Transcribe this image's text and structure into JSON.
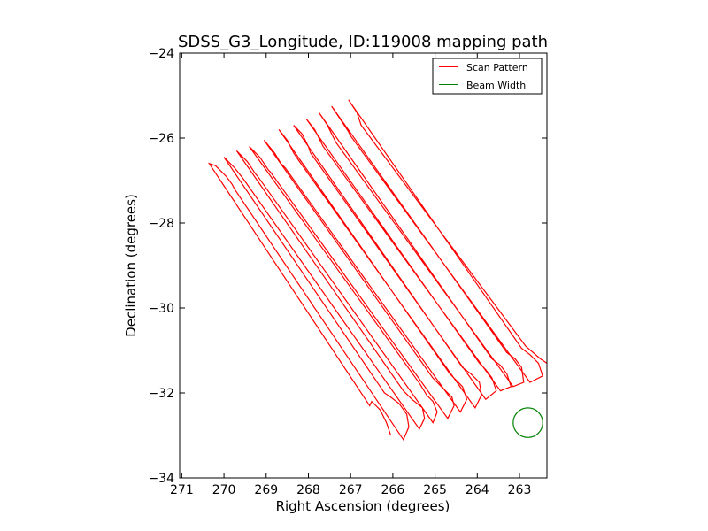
{
  "chart_data": {
    "type": "line",
    "title": "SDSS_G3_Longitude, ID:119008 mapping path",
    "xlabel": "Right Ascension (degrees)",
    "ylabel": "Declination (degrees)",
    "xlim": [
      271.05,
      262.35
    ],
    "ylim": [
      -34,
      -24
    ],
    "x_ticks": [
      271,
      270,
      269,
      268,
      267,
      266,
      265,
      264,
      263
    ],
    "x_tick_labels": [
      "271",
      "270",
      "269",
      "268",
      "267",
      "266",
      "265",
      "264",
      "263"
    ],
    "y_ticks": [
      -24,
      -26,
      -28,
      -30,
      -32,
      -34
    ],
    "y_tick_labels": [
      "−24",
      "−26",
      "−28",
      "−30",
      "−32",
      "−34"
    ],
    "grid": false,
    "legend_position": "upper right",
    "series": [
      {
        "name": "Scan Pattern",
        "color": "#ff0000",
        "x": [
          266.05,
          266.15,
          266.3,
          266.5,
          266.55,
          270.35,
          270.2,
          269.95,
          269.8,
          269.75,
          265.75,
          265.62,
          265.67,
          265.85,
          266.05,
          266.2,
          270.0,
          269.75,
          269.55,
          269.55,
          265.37,
          265.25,
          265.3,
          265.55,
          265.75,
          269.7,
          269.45,
          269.25,
          269.2,
          265.05,
          264.95,
          265.05,
          265.2,
          265.35,
          269.4,
          269.15,
          268.95,
          268.9,
          264.7,
          264.55,
          264.6,
          264.85,
          265.05,
          269.05,
          268.8,
          268.65,
          268.55,
          264.4,
          264.25,
          264.35,
          264.5,
          264.65,
          268.7,
          268.5,
          268.35,
          268.25,
          264.05,
          263.9,
          263.95,
          264.15,
          264.35,
          268.35,
          268.15,
          268.0,
          267.95,
          263.8,
          263.55,
          263.65,
          263.8,
          263.95,
          268.05,
          267.85,
          267.7,
          267.65,
          263.45,
          263.2,
          263.3,
          263.45,
          263.65,
          267.75,
          267.55,
          267.4,
          267.35,
          263.15,
          262.9,
          262.95,
          263.1,
          263.3,
          267.45,
          267.25,
          267.05,
          267.0,
          262.75,
          262.45,
          262.55,
          262.75,
          262.95,
          267.05,
          266.85,
          266.75,
          262.85,
          262.5,
          262.35
        ],
        "y": [
          -33.0,
          -32.7,
          -32.4,
          -32.2,
          -32.3,
          -26.6,
          -26.65,
          -26.9,
          -27.1,
          -27.2,
          -33.1,
          -32.8,
          -32.5,
          -32.25,
          -32.1,
          -32.0,
          -26.45,
          -26.7,
          -26.95,
          -26.95,
          -32.85,
          -32.6,
          -32.35,
          -32.15,
          -31.95,
          -26.3,
          -26.55,
          -26.85,
          -26.9,
          -32.7,
          -32.45,
          -32.2,
          -32.05,
          -31.8,
          -26.2,
          -26.45,
          -26.75,
          -26.8,
          -32.6,
          -32.3,
          -32.1,
          -31.85,
          -31.65,
          -26.05,
          -26.35,
          -26.6,
          -26.7,
          -32.45,
          -32.15,
          -31.85,
          -31.7,
          -31.55,
          -25.8,
          -26.05,
          -26.35,
          -26.5,
          -32.35,
          -32.05,
          -31.75,
          -31.55,
          -31.4,
          -25.7,
          -25.9,
          -26.2,
          -26.35,
          -32.15,
          -31.95,
          -31.65,
          -31.45,
          -31.3,
          -25.55,
          -25.8,
          -26.1,
          -26.2,
          -31.95,
          -31.85,
          -31.55,
          -31.35,
          -31.2,
          -25.4,
          -25.7,
          -26.0,
          -26.1,
          -31.85,
          -31.75,
          -31.4,
          -31.2,
          -31.05,
          -25.25,
          -25.55,
          -25.85,
          -25.95,
          -31.75,
          -31.6,
          -31.3,
          -31.1,
          -30.95,
          -25.1,
          -25.4,
          -25.7,
          -30.9,
          -31.2,
          -31.3
        ]
      },
      {
        "name": "Beam Width",
        "color": "#008000",
        "shape": "circle",
        "center": [
          262.8,
          -32.7
        ],
        "radius_deg": 0.35
      }
    ]
  }
}
